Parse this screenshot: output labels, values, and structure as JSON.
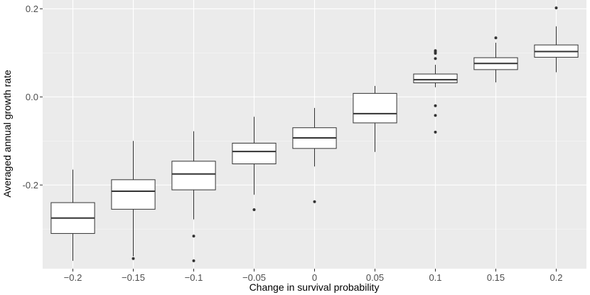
{
  "chart_data": {
    "type": "box",
    "title": "",
    "xlabel": "Change in survival probability",
    "ylabel": "Averaged annual growth rate",
    "ylim": [
      -0.39,
      0.22
    ],
    "yticks": [
      {
        "value": -0.2,
        "label": "-0.2"
      },
      {
        "value": 0.0,
        "label": "0.0"
      },
      {
        "value": 0.2,
        "label": "0.2"
      }
    ],
    "grid": true,
    "categories": [
      "−0.2",
      "−0.15",
      "−0.1",
      "−0.05",
      "0",
      "0.05",
      "0.1",
      "0.15",
      "0.2"
    ],
    "boxes": [
      {
        "min": -0.372,
        "q1": -0.31,
        "median": -0.275,
        "q3": -0.24,
        "max": -0.165,
        "outliers": []
      },
      {
        "min": -0.362,
        "q1": -0.255,
        "median": -0.214,
        "q3": -0.188,
        "max": -0.1,
        "outliers": [
          -0.367
        ]
      },
      {
        "min": -0.278,
        "q1": -0.211,
        "median": -0.175,
        "q3": -0.146,
        "max": -0.078,
        "outliers": [
          -0.316,
          -0.372
        ]
      },
      {
        "min": -0.222,
        "q1": -0.152,
        "median": -0.124,
        "q3": -0.105,
        "max": -0.045,
        "outliers": [
          -0.256
        ]
      },
      {
        "min": -0.158,
        "q1": -0.117,
        "median": -0.093,
        "q3": -0.07,
        "max": -0.025,
        "outliers": [
          -0.238
        ]
      },
      {
        "min": -0.125,
        "q1": -0.059,
        "median": -0.038,
        "q3": 0.008,
        "max": 0.025,
        "outliers": []
      },
      {
        "min": 0.022,
        "q1": 0.032,
        "median": 0.039,
        "q3": 0.052,
        "max": 0.073,
        "outliers": [
          0.105,
          0.102,
          0.099,
          0.087,
          -0.02,
          -0.042,
          -0.08
        ]
      },
      {
        "min": 0.033,
        "q1": 0.062,
        "median": 0.076,
        "q3": 0.089,
        "max": 0.123,
        "outliers": [
          0.134
        ]
      },
      {
        "min": 0.056,
        "q1": 0.09,
        "median": 0.103,
        "q3": 0.118,
        "max": 0.16,
        "outliers": [
          0.202
        ]
      }
    ],
    "colors": {
      "panel": "#ebebeb",
      "grid_major": "#ffffff",
      "box_fill": "#ffffff",
      "box_line": "#333333",
      "point": "#333333"
    }
  }
}
